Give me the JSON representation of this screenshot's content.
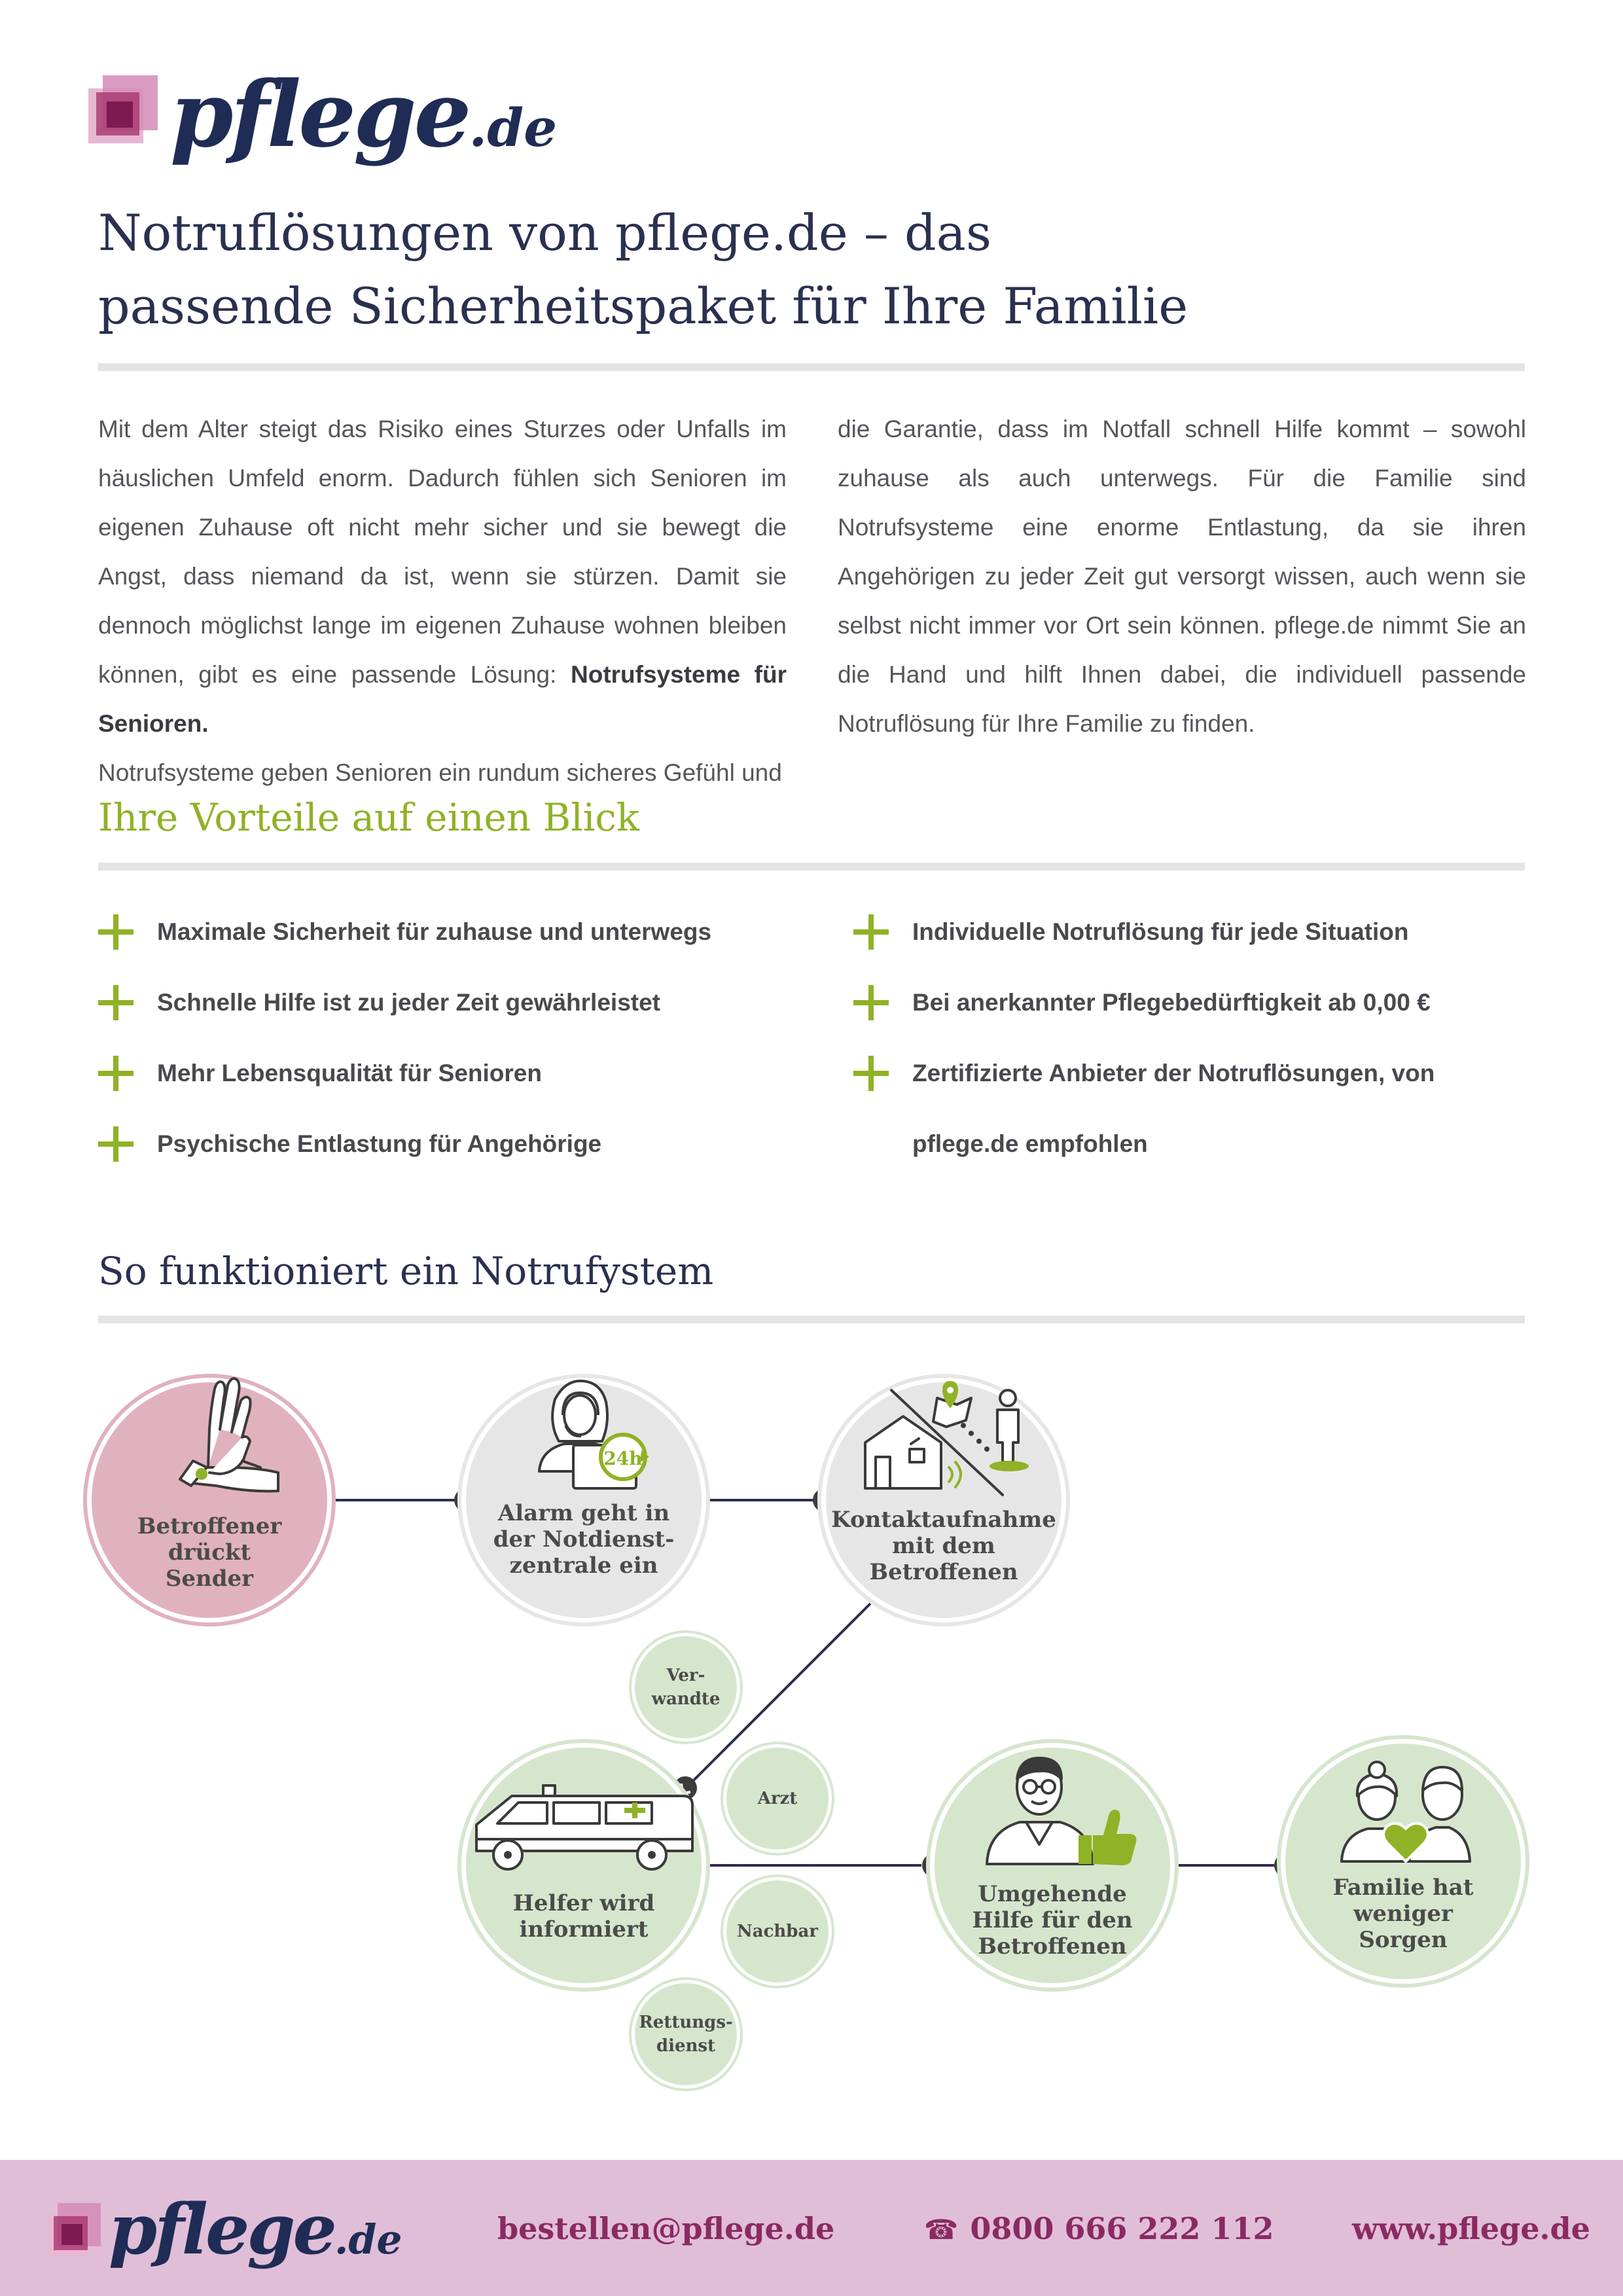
{
  "brand": {
    "name": "pflege",
    "tld": ".de"
  },
  "title": {
    "line1": "Notruflösungen von pflege.de – das",
    "line2": "passende Sicherheitspaket für Ihre Familie"
  },
  "intro": {
    "col1": "Mit dem Alter steigt das Risiko eines Sturzes oder Unfalls im häuslichen Umfeld enorm. Dadurch fühlen sich Senioren im eigenen Zuhause oft nicht mehr sicher und sie bewegt die Angst, dass niemand da ist, wenn sie stürzen. Damit sie dennoch möglichst lange im eigenen Zuhause wohnen bleiben können, gibt es eine passende Lösung:",
    "col1_bold": "Notrufsysteme für Senioren.",
    "col1_tail": "Notrufsysteme geben Senioren ein rundum sicheres Gefühl und",
    "col2": "die Garantie, dass im Notfall schnell Hilfe kommt – sowohl zuhause als auch unterwegs. Für die Familie sind Notrufsysteme eine enorme Entlastung, da sie ihren Angehörigen zu jeder Zeit gut versorgt wissen, auch wenn sie selbst nicht immer vor Ort sein können. pflege.de nimmt Sie an die Hand und hilft Ihnen dabei, die individuell passende Notruflösung für Ihre Familie zu finden."
  },
  "benefits": {
    "heading": "Ihre Vorteile auf einen Blick",
    "left": [
      "Maximale Sicherheit für zuhause und unterwegs",
      "Schnelle Hilfe ist zu jeder Zeit gewährleistet",
      "Mehr Lebensqualität für Senioren",
      "Psychische Entlastung für Angehörige"
    ],
    "right": [
      "Individuelle Notruflösung für jede Situation",
      "Bei anerkannter Pflegebedürftigkeit ab 0,00 €",
      "Zertifizierte Anbieter der Notruflösungen, von",
      "pflege.de empfohlen"
    ]
  },
  "process": {
    "heading": "So funktioniert ein Notrufystem",
    "steps": {
      "press": [
        "Betroffener",
        "drückt",
        "Sender"
      ],
      "alarm": [
        "Alarm geht in",
        "der Notdienst-",
        "zentrale ein"
      ],
      "contact": [
        "Kontaktaufnahme",
        "mit dem",
        "Betroffenen"
      ],
      "helper": [
        "Helfer wird",
        "informiert"
      ],
      "help": [
        "Umgehende",
        "Hilfe für den",
        "Betroffenen"
      ],
      "family": [
        "Familie hat",
        "weniger",
        "Sorgen"
      ]
    },
    "badge_24h": "24h",
    "helpers": [
      "Ver-\nwandte",
      "Arzt",
      "Nachbar",
      "Rettungs-\ndienst"
    ]
  },
  "footer": {
    "email": "bestellen@pflege.de",
    "phone": "0800 666 222 112",
    "web": "www.pflege.de"
  },
  "colors": {
    "navy": "#1f2c55",
    "green": "#8fb226",
    "pink": "#e0b2bd",
    "plum": "#8a2a63",
    "footer_bg": "#e1bed8",
    "light_gray": "#e6e6e6",
    "light_green": "#d6e6cd"
  }
}
